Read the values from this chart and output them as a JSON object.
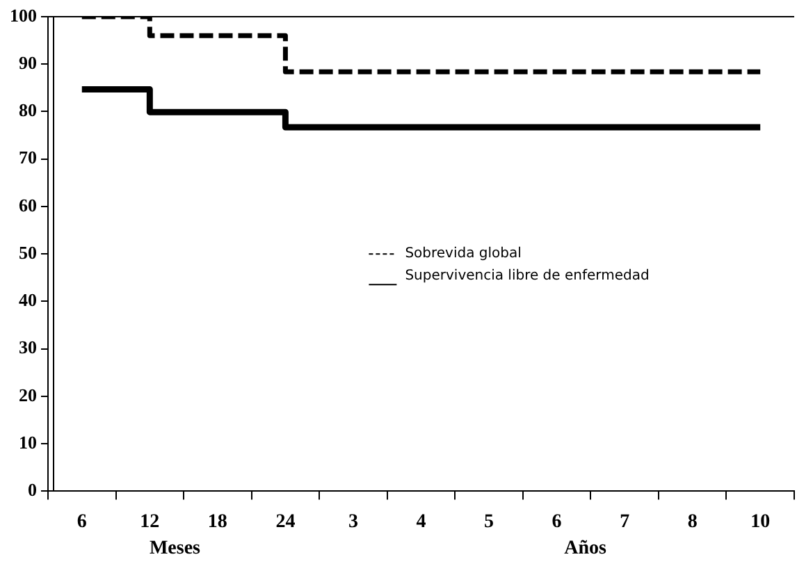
{
  "chart_data": {
    "type": "step",
    "categories": [
      "6",
      "12",
      "18",
      "24",
      "3",
      "4",
      "5",
      "6",
      "7",
      "8",
      "10"
    ],
    "series": [
      {
        "name": "Sobrevida global",
        "color": "#000000",
        "line_style": "dashed",
        "values": [
          100,
          96,
          96,
          88.4,
          88.4,
          88.4,
          88.4,
          88.4,
          88.4,
          88.4,
          88.4
        ]
      },
      {
        "name": "Supervivencia libre de enfermedad",
        "color": "#000000",
        "line_style": "solid",
        "values": [
          84.7,
          79.9,
          79.9,
          76.7,
          76.7,
          76.7,
          76.7,
          76.7,
          76.7,
          76.7,
          76.7
        ]
      }
    ],
    "ylim": [
      0,
      100
    ],
    "yticks": [
      0,
      10,
      20,
      30,
      40,
      50,
      60,
      70,
      80,
      90,
      100
    ],
    "annotations": [
      "Meses",
      "Años"
    ],
    "legend": "center right",
    "marker": "none"
  }
}
